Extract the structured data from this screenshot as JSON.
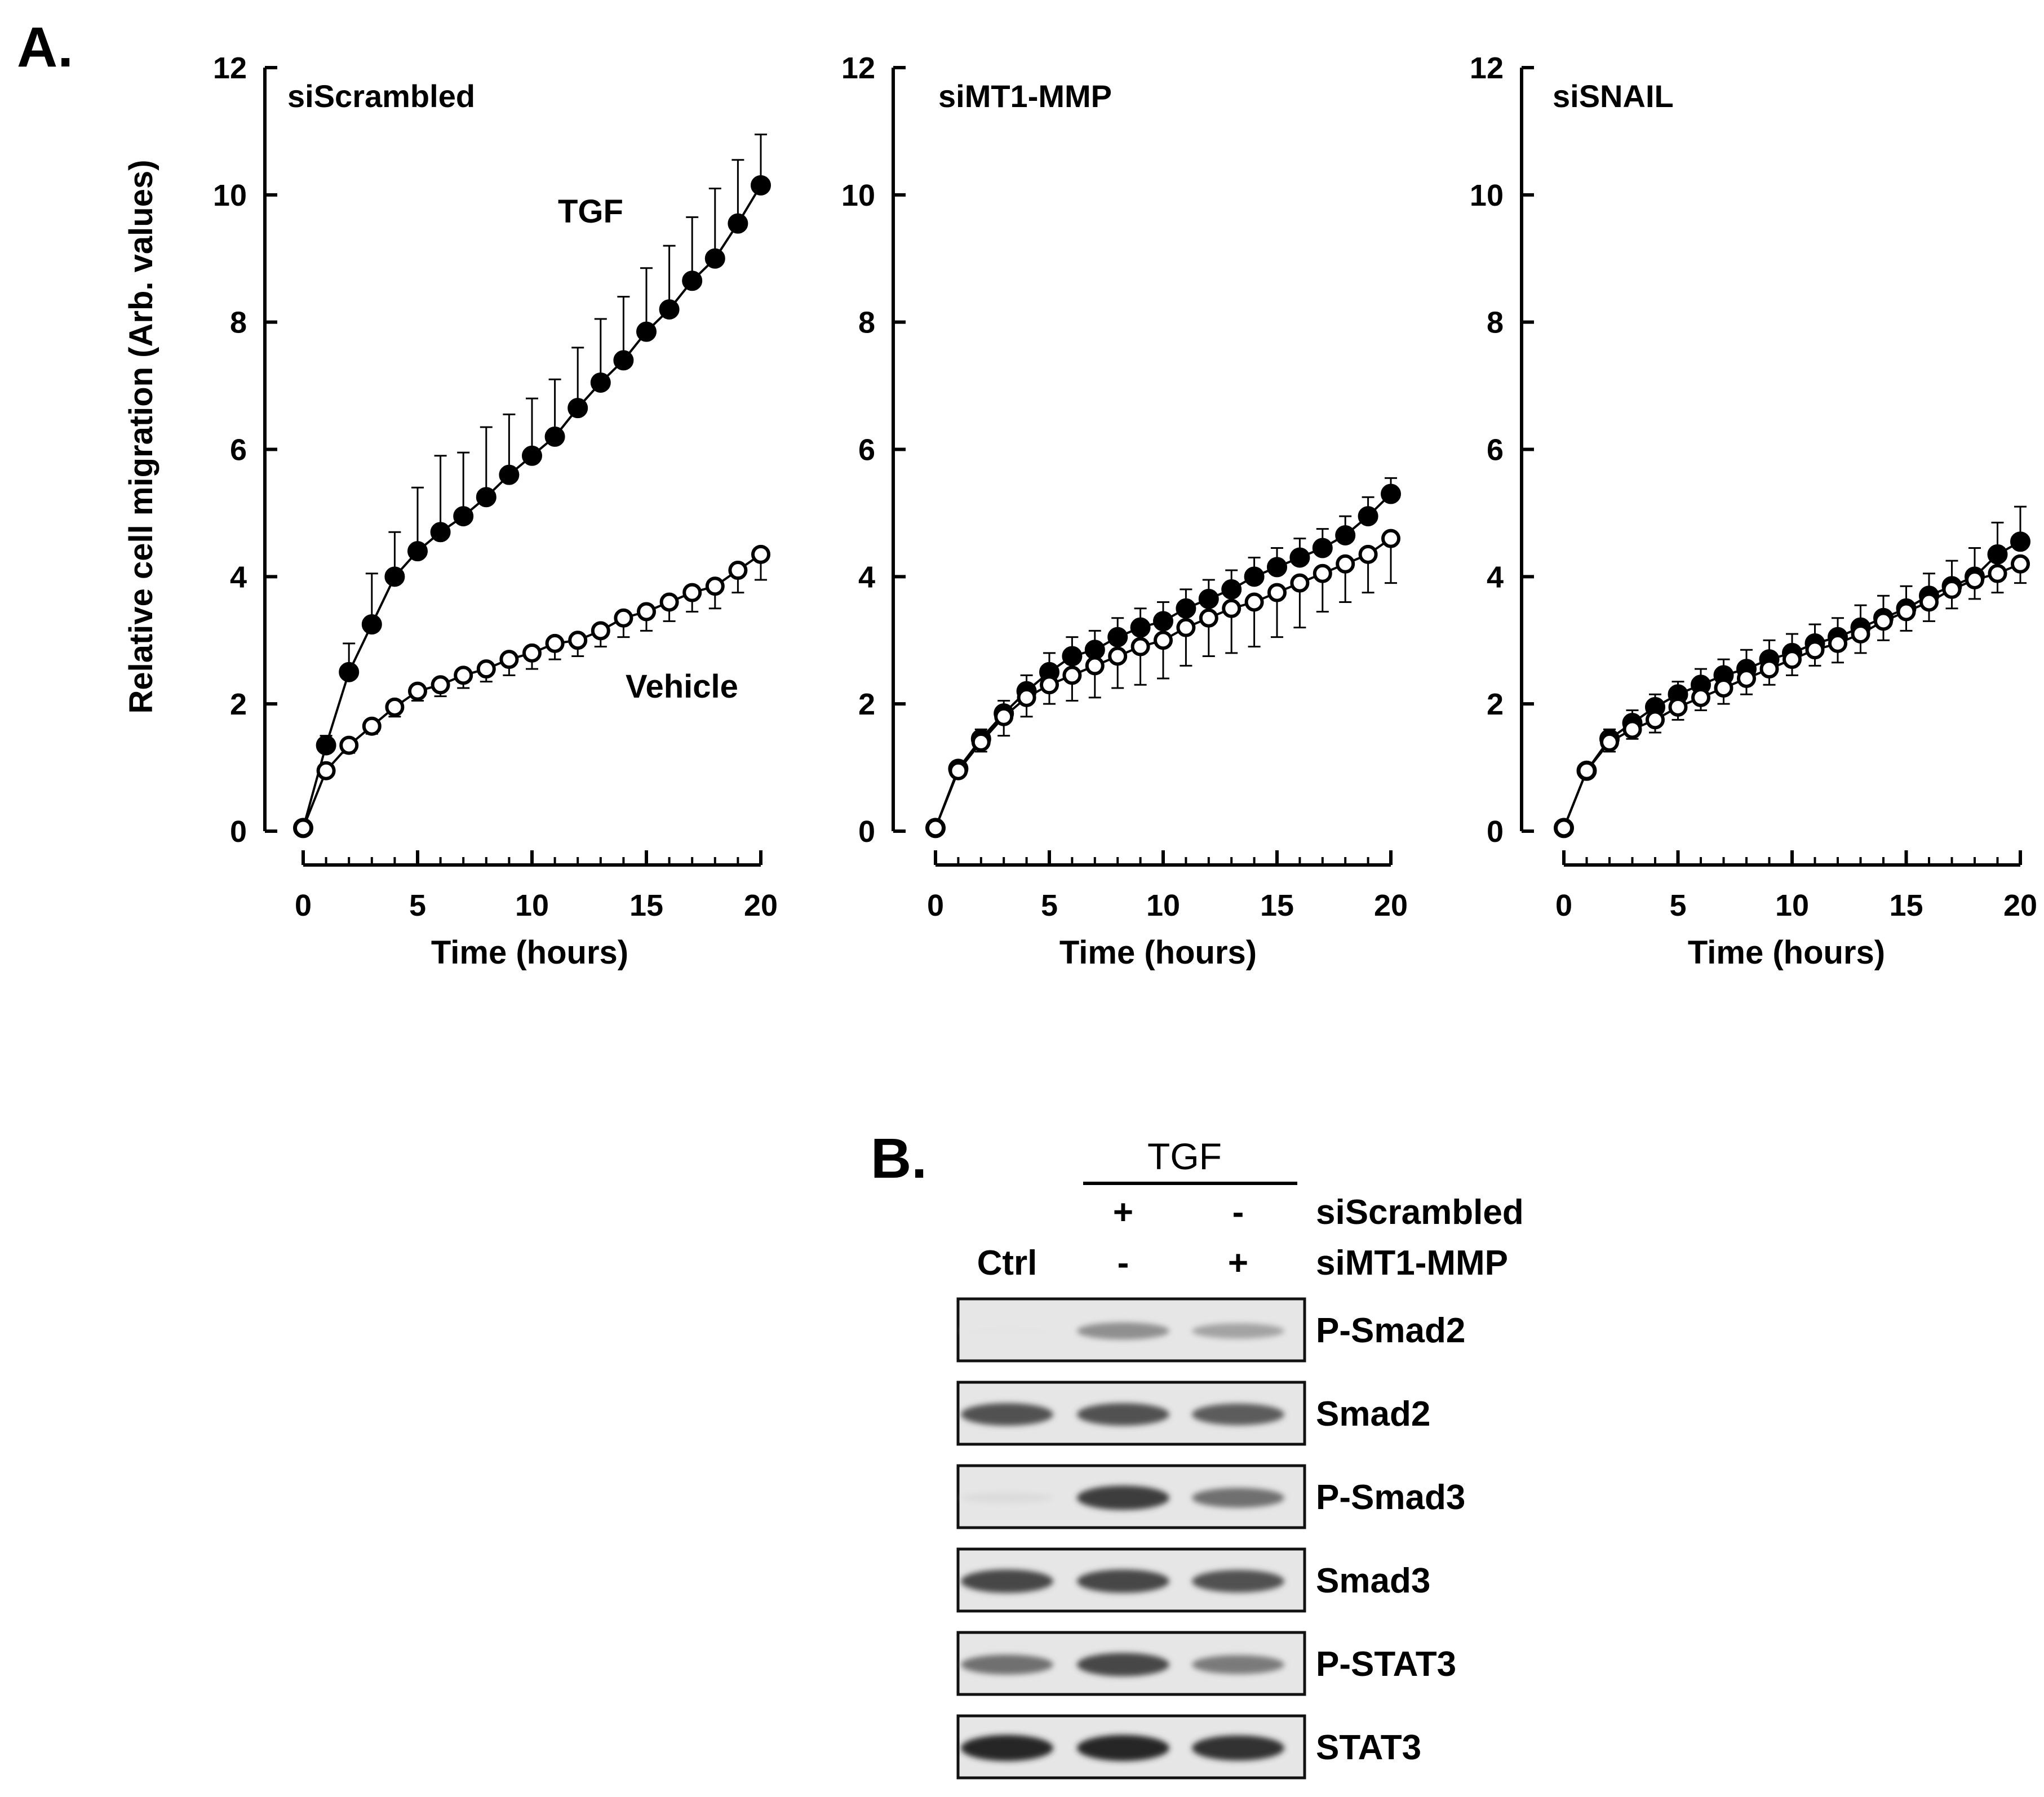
{
  "panel_a_label": "A.",
  "panel_b_label": "B.",
  "chart_data": [
    {
      "type": "scatter",
      "title": "siScrambled",
      "xlabel": "Time (hours)",
      "ylabel": "Relative cell migration (Arb. values)",
      "xlim": [
        0,
        20
      ],
      "ylim": [
        0,
        12
      ],
      "xticks": [
        "0",
        "5",
        "10",
        "15",
        "20"
      ],
      "yticks": [
        "0",
        "2",
        "4",
        "6",
        "8",
        "10",
        "12"
      ],
      "annotations": {
        "tgf": "TGF",
        "vehicle": "Vehicle"
      },
      "series": [
        {
          "name": "TGF",
          "marker": "filled",
          "x": [
            0,
            1,
            2,
            3,
            4,
            5,
            6,
            7,
            8,
            9,
            10,
            11,
            12,
            13,
            14,
            15,
            16,
            17,
            18,
            19,
            20
          ],
          "values": [
            0.05,
            1.35,
            2.5,
            3.25,
            4.0,
            4.4,
            4.7,
            4.95,
            5.25,
            5.6,
            5.9,
            6.2,
            6.65,
            7.05,
            7.4,
            7.85,
            8.2,
            8.65,
            9.0,
            9.55,
            10.15
          ],
          "errors": [
            0,
            0.15,
            0.45,
            0.8,
            0.7,
            1.0,
            1.2,
            1.0,
            1.1,
            0.95,
            0.9,
            0.9,
            0.95,
            1.0,
            1.0,
            1.0,
            1.0,
            1.0,
            1.1,
            1.0,
            0.8
          ]
        },
        {
          "name": "Vehicle",
          "marker": "open",
          "x": [
            0,
            1,
            2,
            3,
            4,
            5,
            6,
            7,
            8,
            9,
            10,
            11,
            12,
            13,
            14,
            15,
            16,
            17,
            18,
            19,
            20
          ],
          "values": [
            0.05,
            0.95,
            1.35,
            1.65,
            1.95,
            2.2,
            2.3,
            2.45,
            2.55,
            2.7,
            2.8,
            2.95,
            3.0,
            3.15,
            3.35,
            3.45,
            3.6,
            3.75,
            3.85,
            4.1,
            4.35
          ],
          "errors": [
            0,
            0.1,
            0.12,
            0.12,
            0.15,
            0.15,
            0.18,
            0.2,
            0.2,
            0.25,
            0.25,
            0.25,
            0.25,
            0.25,
            0.3,
            0.3,
            0.3,
            0.3,
            0.35,
            0.35,
            0.4
          ]
        }
      ]
    },
    {
      "type": "scatter",
      "title": "siMT1-MMP",
      "xlabel": "Time (hours)",
      "xlim": [
        0,
        20
      ],
      "ylim": [
        0,
        12
      ],
      "xticks": [
        "0",
        "5",
        "10",
        "15",
        "20"
      ],
      "yticks": [
        "0",
        "2",
        "4",
        "6",
        "8",
        "10",
        "12"
      ],
      "series": [
        {
          "name": "TGF",
          "marker": "filled",
          "x": [
            0,
            1,
            2,
            3,
            4,
            5,
            6,
            7,
            8,
            9,
            10,
            11,
            12,
            13,
            14,
            15,
            16,
            17,
            18,
            19,
            20
          ],
          "values": [
            0.05,
            0.98,
            1.45,
            1.85,
            2.2,
            2.5,
            2.75,
            2.85,
            3.05,
            3.2,
            3.3,
            3.5,
            3.65,
            3.8,
            4.0,
            4.15,
            4.3,
            4.45,
            4.65,
            4.95,
            5.3
          ],
          "errors": [
            0,
            0.1,
            0.15,
            0.2,
            0.25,
            0.3,
            0.3,
            0.3,
            0.3,
            0.3,
            0.3,
            0.3,
            0.3,
            0.3,
            0.3,
            0.3,
            0.3,
            0.3,
            0.3,
            0.3,
            0.25
          ]
        },
        {
          "name": "Vehicle",
          "marker": "open",
          "x": [
            0,
            1,
            2,
            3,
            4,
            5,
            6,
            7,
            8,
            9,
            10,
            11,
            12,
            13,
            14,
            15,
            16,
            17,
            18,
            19,
            20
          ],
          "values": [
            0.05,
            0.95,
            1.4,
            1.8,
            2.1,
            2.3,
            2.45,
            2.6,
            2.75,
            2.9,
            3.0,
            3.2,
            3.35,
            3.5,
            3.6,
            3.75,
            3.9,
            4.05,
            4.2,
            4.35,
            4.6
          ],
          "errors": [
            0,
            0.1,
            0.15,
            0.3,
            0.3,
            0.3,
            0.4,
            0.5,
            0.5,
            0.6,
            0.6,
            0.6,
            0.6,
            0.7,
            0.7,
            0.7,
            0.7,
            0.6,
            0.6,
            0.6,
            0.7
          ]
        }
      ]
    },
    {
      "type": "scatter",
      "title": "siSNAIL",
      "xlabel": "Time (hours)",
      "xlim": [
        0,
        20
      ],
      "ylim": [
        0,
        12
      ],
      "xticks": [
        "0",
        "5",
        "10",
        "15",
        "20"
      ],
      "yticks": [
        "0",
        "2",
        "4",
        "6",
        "8",
        "10",
        "12"
      ],
      "series": [
        {
          "name": "TGF",
          "marker": "filled",
          "x": [
            0,
            1,
            2,
            3,
            4,
            5,
            6,
            7,
            8,
            9,
            10,
            11,
            12,
            13,
            14,
            15,
            16,
            17,
            18,
            19,
            20
          ],
          "values": [
            0.05,
            0.95,
            1.45,
            1.7,
            1.95,
            2.15,
            2.3,
            2.45,
            2.55,
            2.7,
            2.8,
            2.95,
            3.05,
            3.2,
            3.35,
            3.5,
            3.7,
            3.85,
            4.0,
            4.35,
            4.55
          ],
          "errors": [
            0,
            0.1,
            0.15,
            0.2,
            0.2,
            0.2,
            0.25,
            0.25,
            0.3,
            0.3,
            0.3,
            0.3,
            0.3,
            0.35,
            0.35,
            0.35,
            0.35,
            0.4,
            0.45,
            0.5,
            0.55
          ]
        },
        {
          "name": "Vehicle",
          "marker": "open",
          "x": [
            0,
            1,
            2,
            3,
            4,
            5,
            6,
            7,
            8,
            9,
            10,
            11,
            12,
            13,
            14,
            15,
            16,
            17,
            18,
            19,
            20
          ],
          "values": [
            0.05,
            0.95,
            1.4,
            1.6,
            1.75,
            1.95,
            2.1,
            2.25,
            2.4,
            2.55,
            2.7,
            2.85,
            2.95,
            3.1,
            3.3,
            3.45,
            3.6,
            3.8,
            3.95,
            4.05,
            4.2
          ],
          "errors": [
            0,
            0.1,
            0.15,
            0.15,
            0.2,
            0.2,
            0.2,
            0.25,
            0.25,
            0.25,
            0.25,
            0.25,
            0.3,
            0.3,
            0.3,
            0.3,
            0.3,
            0.3,
            0.3,
            0.3,
            0.3
          ]
        }
      ]
    }
  ],
  "blot": {
    "header": "TGF",
    "ctrl_label": "Ctrl",
    "row1_label": "siScrambled",
    "row2_label": "siMT1-MMP",
    "row1_signs": [
      "+",
      "-"
    ],
    "row2_signs": [
      "-",
      "+"
    ],
    "bands": [
      {
        "label": "P-Smad2",
        "intensity": [
          0.03,
          0.45,
          0.35
        ]
      },
      {
        "label": "Smad2",
        "intensity": [
          0.75,
          0.75,
          0.7
        ]
      },
      {
        "label": "P-Smad3",
        "intensity": [
          0.08,
          0.85,
          0.6
        ]
      },
      {
        "label": "Smad3",
        "intensity": [
          0.8,
          0.8,
          0.75
        ]
      },
      {
        "label": "P-STAT3",
        "intensity": [
          0.6,
          0.8,
          0.55
        ]
      },
      {
        "label": "STAT3",
        "intensity": [
          0.95,
          0.95,
          0.9
        ]
      }
    ]
  }
}
